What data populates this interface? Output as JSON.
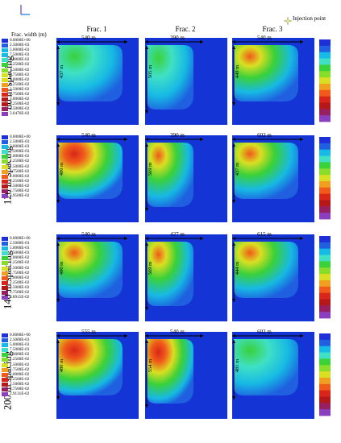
{
  "header": {
    "fracs": [
      "Frac. 1",
      "Frac. 2",
      "Frac. 3"
    ],
    "injection_label": "Injection point",
    "width_title": "Frac. width (m)"
  },
  "rows": [
    {
      "label": "80 m spacing",
      "legend": [
        "0.0000E+00",
        "2.5000E-03",
        "5.0000E-03",
        "7.5000E-03",
        "1.0000E-02",
        "1.2500E-02",
        "1.5000E-02",
        "1.7500E-02",
        "2.0000E-02",
        "2.2500E-02",
        "2.5000E-02",
        "2.7500E-02",
        "3.0000E-02",
        "3.2500E-02",
        "3.5000E-02",
        "3.6476E-02"
      ],
      "panels": [
        {
          "length": "540 m",
          "height": "437 m"
        },
        {
          "length": "390 m",
          "height": "505 m"
        },
        {
          "length": "540 m",
          "height": "449 m"
        }
      ]
    },
    {
      "label": "120 m spacing",
      "legend": [
        "0.0000E+00",
        "2.5000E-03",
        "5.0000E-03",
        "7.5000E-03",
        "1.0000E-02",
        "1.2500E-02",
        "1.5000E-02",
        "1.7500E-02",
        "2.0000E-02",
        "2.2500E-02",
        "2.5000E-02",
        "2.7500E-02",
        "2.9500E-02"
      ],
      "panels": [
        {
          "length": "540 m",
          "height": "480 m"
        },
        {
          "length": "390 m",
          "height": "569 m"
        },
        {
          "length": "602 m",
          "height": "437 m"
        }
      ]
    },
    {
      "label": "140 m spacing",
      "legend": [
        "0.0000E+00",
        "2.5000E-03",
        "5.0000E-03",
        "7.5000E-03",
        "1.0000E-02",
        "1.2500E-02",
        "1.5000E-02",
        "1.7500E-02",
        "2.0000E-02",
        "2.2500E-02",
        "2.5000E-02",
        "2.7500E-02",
        "2.8915E-02"
      ],
      "panels": [
        {
          "length": "540 m",
          "height": "480 m"
        },
        {
          "length": "427 m",
          "height": "569 m"
        },
        {
          "length": "615 m",
          "height": "444 m"
        }
      ]
    },
    {
      "label": "200 m spacing",
      "legend": [
        "0.0000E+00",
        "2.5000E-03",
        "5.0000E-03",
        "7.5000E-03",
        "1.0000E-02",
        "1.2500E-02",
        "1.5000E-02",
        "1.7500E-02",
        "2.0000E-02",
        "2.2500E-02",
        "2.5000E-02",
        "2.7500E-02",
        "2.9131E-02"
      ],
      "panels": [
        {
          "length": "555 m",
          "height": "480 m"
        },
        {
          "length": "540 m",
          "height": "554 m"
        },
        {
          "length": "602 m",
          "height": "481 m"
        }
      ]
    }
  ],
  "colors": {
    "background_field": "#1434d6",
    "scale": [
      "#1f2fd8",
      "#1f5fe0",
      "#17b9e5",
      "#3fe0c6",
      "#3ad13a",
      "#88dd2a",
      "#d9df22",
      "#f0a021",
      "#f05a1a",
      "#d8271a",
      "#b41818",
      "#972063",
      "#8a3fbe"
    ]
  }
}
